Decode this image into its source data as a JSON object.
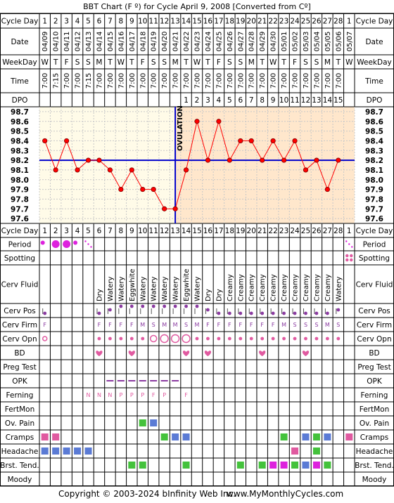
{
  "title": "BBT Chart (F º) for Cycle April 9, 2008  [Converted from Cº]",
  "footer": {
    "copyright": "Copyright © 2003-2024 bInfinity Web Inc.",
    "site": "www.MyMonthlyCycles.com"
  },
  "row_labels": [
    "Cycle Day",
    "Date",
    "WeekDay",
    "Time",
    "DPO",
    "Cycle Day",
    "Period",
    "Spotting",
    "Cerv Fluid",
    "Cerv Pos",
    "Cerv Firm",
    "Cerv Opn",
    "BD",
    "Preg Test",
    "OPK",
    "Ferning",
    "FertMon",
    "Ov. Pain",
    "Cramps",
    "Headache",
    "Brst. Tend.",
    "Moody"
  ],
  "ovulation_label": "OVULATION",
  "colors": {
    "temp_line": "#ff0000",
    "coverline": "#0000cc",
    "pre_ov_bg": "#fffbe8",
    "post_ov_bg": "#ffe7cc",
    "pink": "#e05aa0",
    "blue": "#5b7bd5",
    "green": "#44c23c",
    "magenta": "#dd22dd",
    "purple": "#8a3aa0"
  },
  "cycle_days": [
    "1",
    "2",
    "3",
    "4",
    "5",
    "6",
    "7",
    "8",
    "9",
    "10",
    "11",
    "12",
    "13",
    "14",
    "15",
    "16",
    "17",
    "18",
    "19",
    "20",
    "21",
    "22",
    "23",
    "24",
    "25",
    "26",
    "27",
    "28",
    "1"
  ],
  "dates": [
    "04/09",
    "04/10",
    "04/11",
    "04/12",
    "04/13",
    "04/14",
    "04/15",
    "04/16",
    "04/17",
    "04/18",
    "04/19",
    "04/20",
    "04/21",
    "04/22",
    "04/23",
    "04/24",
    "04/25",
    "04/26",
    "04/27",
    "04/28",
    "04/29",
    "04/30",
    "05/01",
    "05/02",
    "05/03",
    "05/04",
    "05/05",
    "05/06",
    "05/07"
  ],
  "weekdays": [
    "W",
    "T",
    "F",
    "S",
    "S",
    "M",
    "T",
    "W",
    "T",
    "F",
    "S",
    "S",
    "M",
    "T",
    "W",
    "T",
    "F",
    "S",
    "S",
    "M",
    "T",
    "W",
    "T",
    "F",
    "S",
    "S",
    "M",
    "T",
    "W"
  ],
  "times": [
    "7:00",
    "7:15",
    "7:00",
    "7:00",
    "7:15",
    "7:00",
    "7:00",
    "7:00",
    "7:00",
    "7:00",
    "7:00",
    "7:00",
    "7:00",
    "7:00",
    "7:00",
    "7:00",
    "7:00",
    "7:00",
    "7:00",
    "7:00",
    "7:00",
    "7:00",
    "7:00",
    "7:00",
    "7:00",
    "7:00",
    "7:00",
    "7:00",
    ""
  ],
  "dpo": [
    "",
    "",
    "",
    "",
    "",
    "",
    "",
    "",
    "",
    "",
    "",
    "",
    "",
    "1",
    "2",
    "3",
    "4",
    "5",
    "6",
    "7",
    "8",
    "9",
    "10",
    "11",
    "12",
    "13",
    "14",
    "15",
    ""
  ],
  "cerv_fluid": [
    "",
    "",
    "",
    "",
    "",
    "Dry",
    "Watery",
    "Watery",
    "Eggwhite",
    "Watery",
    "Watery",
    "Watery",
    "Watery",
    "Eggwhite",
    "Watery",
    "Dry",
    "Dry",
    "Creamy",
    "Creamy",
    "Creamy",
    "Creamy",
    "Creamy",
    "Creamy",
    "Creamy",
    "Creamy",
    "Creamy",
    "Creamy",
    "Watery",
    ""
  ],
  "cerv_firm": [
    "F",
    "",
    "",
    "",
    "",
    "F",
    "F",
    "F",
    "F",
    "M",
    "S",
    "M",
    "M",
    "S",
    "M",
    "F",
    "F",
    "F",
    "F",
    "F",
    "F",
    "F",
    "M",
    "S",
    "S",
    "S",
    "M",
    "S",
    ""
  ],
  "ferning": [
    "",
    "",
    "",
    "",
    "N",
    "N",
    "N",
    "P",
    "P",
    "P",
    "F",
    "P",
    "",
    "F",
    "",
    "",
    "",
    "",
    "",
    "",
    "",
    "",
    "",
    "",
    "",
    "",
    "",
    "",
    ""
  ],
  "cerv_opn_size": [
    1,
    0,
    0,
    0,
    0,
    1,
    1,
    1,
    1,
    1,
    2,
    3,
    3,
    3,
    1,
    1,
    1,
    1,
    1,
    1,
    1,
    1,
    1,
    1,
    1,
    1,
    1,
    1,
    0
  ],
  "cerv_pos_level": [
    1,
    0,
    0,
    0,
    0,
    1,
    2,
    3,
    3,
    3,
    3,
    3,
    3,
    3,
    3,
    2,
    1,
    1,
    1,
    1,
    1,
    1,
    1,
    1,
    1,
    1,
    1,
    2,
    0
  ],
  "period_size": [
    1,
    2,
    2,
    1,
    0,
    0,
    0,
    0,
    0,
    0,
    0,
    0,
    0,
    0,
    0,
    0,
    0,
    0,
    0,
    0,
    0,
    0,
    0,
    0,
    0,
    0,
    0,
    0,
    0
  ],
  "period_light_days": [
    5
  ],
  "spotting_days": [
    29
  ],
  "bd_days": [
    6,
    9,
    14,
    16,
    21,
    25
  ],
  "opk_days": [
    7,
    8,
    9,
    10,
    11,
    12,
    13
  ],
  "ov_pain_days": [
    10,
    11
  ],
  "cramps": [
    {
      "day": 1,
      "c": "pink"
    },
    {
      "day": 2,
      "c": "pink"
    },
    {
      "day": 12,
      "c": "green"
    },
    {
      "day": 13,
      "c": "blue"
    },
    {
      "day": 14,
      "c": "blue"
    },
    {
      "day": 23,
      "c": "green"
    },
    {
      "day": 25,
      "c": "blue"
    },
    {
      "day": 26,
      "c": "green"
    },
    {
      "day": 27,
      "c": "blue"
    },
    {
      "day": 29,
      "c": "pink"
    }
  ],
  "headache": [
    {
      "day": 1,
      "c": "blue"
    },
    {
      "day": 2,
      "c": "blue"
    },
    {
      "day": 3,
      "c": "blue"
    },
    {
      "day": 4,
      "c": "blue"
    },
    {
      "day": 5,
      "c": "blue"
    },
    {
      "day": 24,
      "c": "pink"
    },
    {
      "day": 26,
      "c": "green"
    }
  ],
  "brst_tend": [
    {
      "day": 9,
      "c": "green"
    },
    {
      "day": 10,
      "c": "green"
    },
    {
      "day": 14,
      "c": "green"
    },
    {
      "day": 19,
      "c": "green"
    },
    {
      "day": 21,
      "c": "green"
    },
    {
      "day": 22,
      "c": "magenta"
    },
    {
      "day": 23,
      "c": "magenta"
    },
    {
      "day": 24,
      "c": "green"
    },
    {
      "day": 25,
      "c": "blue"
    },
    {
      "day": 26,
      "c": "magenta"
    },
    {
      "day": 27,
      "c": "green"
    }
  ],
  "chart_data": {
    "type": "line",
    "title": "BBT Chart (F º) for Cycle April 9, 2008  [Converted from Cº]",
    "xlabel": "Cycle Day",
    "ylabel": "",
    "ylim": [
      97.55,
      98.75
    ],
    "y_ticks": [
      "97.6",
      "97.7",
      "97.8",
      "97.9",
      "98.0",
      "98.1",
      "98.2",
      "98.3",
      "98.4",
      "98.5",
      "98.6",
      "98.7"
    ],
    "coverline": 98.2,
    "ovulation_day": 13,
    "series": [
      {
        "values": [
          98.4,
          98.1,
          98.4,
          98.1,
          98.2,
          98.2,
          98.1,
          97.9,
          98.1,
          97.9,
          97.9,
          97.7,
          97.7,
          98.1,
          98.6,
          98.2,
          98.6,
          98.2,
          98.4,
          98.4,
          98.2,
          98.4,
          98.2,
          98.4,
          98.1,
          98.2,
          97.9,
          98.2,
          null
        ]
      }
    ]
  }
}
